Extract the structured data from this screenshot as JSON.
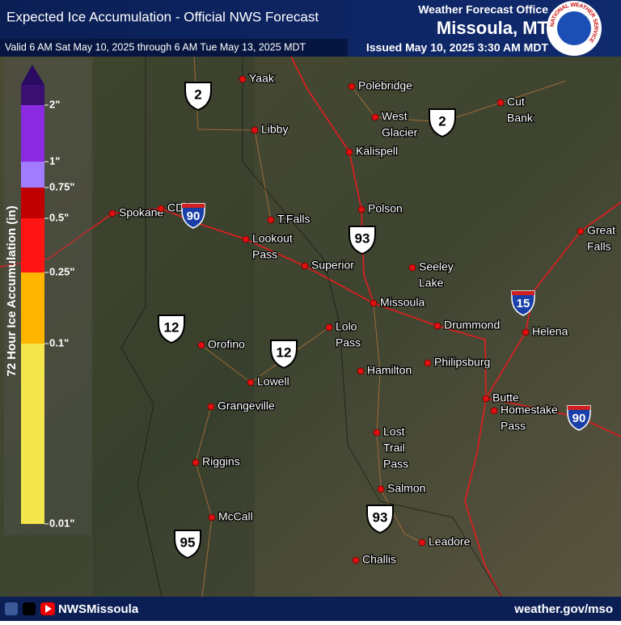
{
  "header": {
    "title": "Expected Ice Accumulation - Official NWS Forecast",
    "valid": "Valid 6 AM Sat May 10, 2025 through 6 AM Tue May 13, 2025 MDT",
    "office": "Weather Forecast Office",
    "location": "Missoula, MT",
    "issued": "Issued May 10, 2025 3:30 AM MDT",
    "logo_text": "NATIONAL WEATHER SERVICE"
  },
  "legend": {
    "title": "72 Hour Ice Accumulation (in)",
    "items": [
      {
        "label": "2\"",
        "color": "#8a2be2"
      },
      {
        "label": "1\"",
        "color": "#a27cff"
      },
      {
        "label": "0.75\"",
        "color": "#c00000"
      },
      {
        "label": "0.5\"",
        "color": "#ff1414"
      },
      {
        "label": "0.25\"",
        "color": "#ffb400"
      },
      {
        "label": "0.1\"",
        "color": "#f4e64c"
      },
      {
        "label": "0.01\""
      }
    ]
  },
  "cities": [
    {
      "lines": [
        "Yaak"
      ]
    },
    {
      "lines": [
        "Polebridge"
      ]
    },
    {
      "lines": [
        "Libby"
      ]
    },
    {
      "lines": [
        "West",
        "Glacier"
      ]
    },
    {
      "lines": [
        "Cut",
        "Bank"
      ]
    },
    {
      "lines": [
        "Kalispell"
      ]
    },
    {
      "lines": [
        "Spokane"
      ]
    },
    {
      "lines": [
        "CDA"
      ]
    },
    {
      "lines": [
        "T.Falls"
      ]
    },
    {
      "lines": [
        "Polson"
      ]
    },
    {
      "lines": [
        "Great",
        "Falls"
      ]
    },
    {
      "lines": [
        "Lookout",
        "Pass"
      ]
    },
    {
      "lines": [
        "Superior"
      ]
    },
    {
      "lines": [
        "Seeley",
        "Lake"
      ]
    },
    {
      "lines": [
        "Missoula"
      ]
    },
    {
      "lines": [
        "Lolo",
        "Pass"
      ]
    },
    {
      "lines": [
        "Drummond"
      ]
    },
    {
      "lines": [
        "Helena"
      ]
    },
    {
      "lines": [
        "Orofino"
      ]
    },
    {
      "lines": [
        "Philipsburg"
      ]
    },
    {
      "lines": [
        "Hamilton"
      ]
    },
    {
      "lines": [
        "Lowell"
      ]
    },
    {
      "lines": [
        "Butte"
      ]
    },
    {
      "lines": [
        "Homestake",
        "Pass"
      ]
    },
    {
      "lines": [
        "Grangeville"
      ]
    },
    {
      "lines": [
        "Lost",
        "Trail",
        "Pass"
      ]
    },
    {
      "lines": [
        "Riggins"
      ]
    },
    {
      "lines": [
        "Salmon"
      ]
    },
    {
      "lines": [
        "McCall"
      ]
    },
    {
      "lines": [
        "Leadore"
      ]
    },
    {
      "lines": [
        "Challis"
      ]
    }
  ],
  "shields": [
    {
      "label": "2",
      "kind": "us"
    },
    {
      "label": "2",
      "kind": "us"
    },
    {
      "label": "90",
      "kind": "interstate"
    },
    {
      "label": "93",
      "kind": "us"
    },
    {
      "label": "15",
      "kind": "interstate"
    },
    {
      "label": "12",
      "kind": "us"
    },
    {
      "label": "12",
      "kind": "us"
    },
    {
      "label": "90",
      "kind": "interstate"
    },
    {
      "label": "93",
      "kind": "us"
    },
    {
      "label": "95",
      "kind": "us"
    }
  ],
  "footer": {
    "handle": "NWSMissoula",
    "url": "weather.gov/mso"
  }
}
